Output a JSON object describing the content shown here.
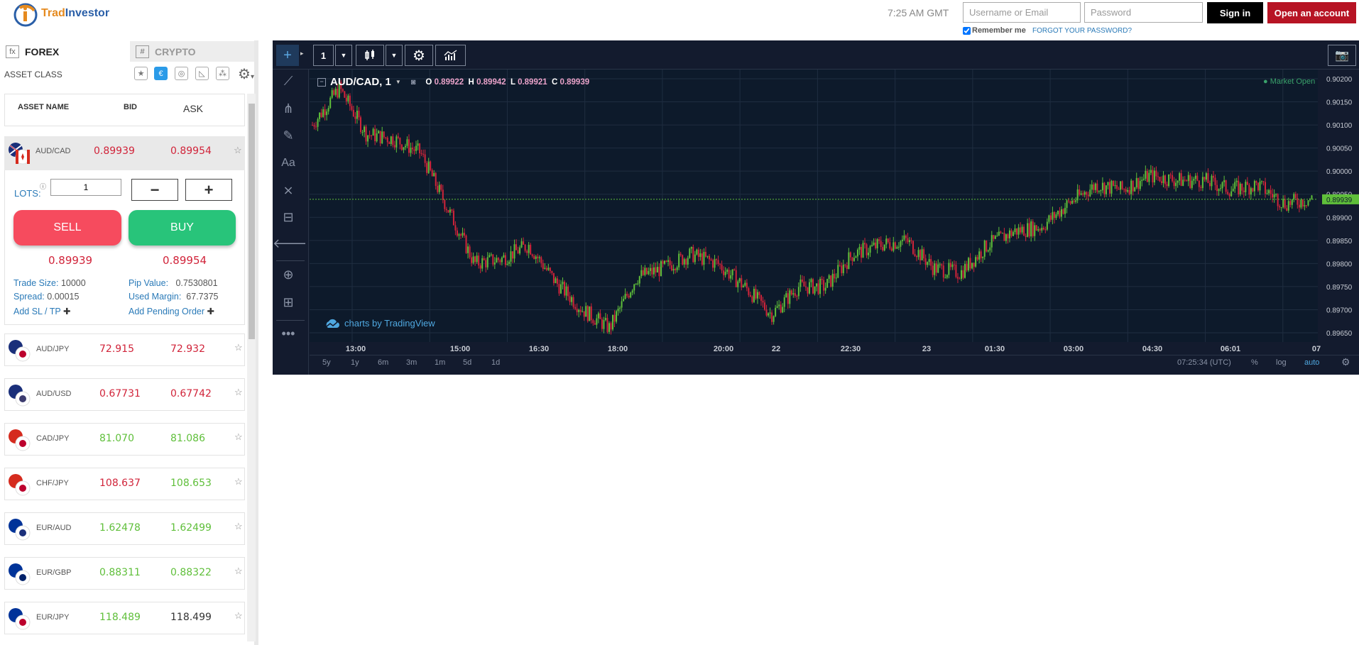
{
  "header": {
    "logo_text_a": "Trad",
    "logo_text_b": "Investor",
    "clock": "7:25 AM GMT",
    "username_placeholder": "Username or Email",
    "password_placeholder": "Password",
    "signin_label": "Sign in",
    "open_account_label": "Open an account",
    "remember_label": "Remember me",
    "forgot_label": "FORGOT YOUR PASSWORD?"
  },
  "tabs": [
    {
      "icon": "fx",
      "label": "FOREX"
    },
    {
      "icon": "#",
      "label": "CRYPTO"
    }
  ],
  "asset_class_label": "ASSET CLASS",
  "filter_icons": [
    "star-icon",
    "euro-icon",
    "coin-icon",
    "chart-icon",
    "cluster-icon"
  ],
  "columns": {
    "name": "ASSET NAME",
    "bid": "BID",
    "ask": "ASK"
  },
  "selected": {
    "name": "AUD/CAD",
    "bid": "0.89939",
    "ask": "0.89954",
    "lots_label": "LOTS:",
    "lots_value": "1",
    "minus": "−",
    "plus": "+",
    "sell_label": "SELL",
    "buy_label": "BUY",
    "sell_price": "0.89939",
    "buy_price": "0.89954",
    "trade_size_label": "Trade Size:",
    "trade_size": "10000",
    "pip_value_label": "Pip Value:",
    "pip_value": "0.7530801",
    "spread_label": "Spread:",
    "spread": "0.00015",
    "used_margin_label": "Used Margin:",
    "used_margin": "67.7375",
    "add_sltp": "Add SL / TP",
    "add_pending": "Add Pending Order"
  },
  "assets": [
    {
      "name": "AUD/JPY",
      "bid": "72.915",
      "ask": "72.932",
      "bid_color": "#d1243a",
      "ask_color": "#d1243a"
    },
    {
      "name": "AUD/USD",
      "bid": "0.67731",
      "ask": "0.67742",
      "bid_color": "#d1243a",
      "ask_color": "#d1243a"
    },
    {
      "name": "CAD/JPY",
      "bid": "81.070",
      "ask": "81.086",
      "bid_color": "#5fbf3a",
      "ask_color": "#5fbf3a"
    },
    {
      "name": "CHF/JPY",
      "bid": "108.637",
      "ask": "108.653",
      "bid_color": "#d1243a",
      "ask_color": "#5fbf3a"
    },
    {
      "name": "EUR/AUD",
      "bid": "1.62478",
      "ask": "1.62499",
      "bid_color": "#5fbf3a",
      "ask_color": "#5fbf3a"
    },
    {
      "name": "EUR/GBP",
      "bid": "0.88311",
      "ask": "0.88322",
      "bid_color": "#5fbf3a",
      "ask_color": "#5fbf3a"
    },
    {
      "name": "EUR/JPY",
      "bid": "118.489",
      "ask": "118.499",
      "bid_color": "#5fbf3a",
      "ask_color": "#333333"
    }
  ],
  "chart": {
    "interval": "1",
    "symbol": "AUD/CAD, 1",
    "o_label": "O",
    "o": "0.89922",
    "h_label": "H",
    "h": "0.89942",
    "l_label": "L",
    "l": "0.89921",
    "c_label": "C",
    "c": "0.89939",
    "market_status": "● Market Open",
    "credit": "charts by TradingView",
    "last_price": "0.89939",
    "price_ticks": [
      "0.90200",
      "0.90150",
      "0.90100",
      "0.90050",
      "0.90000",
      "0.89950",
      "0.89900",
      "0.89850",
      "0.89800",
      "0.89750",
      "0.89700",
      "0.89650"
    ],
    "time_ticks": [
      "13:00",
      "15:00",
      "16:30",
      "18:00",
      "20:00",
      "22",
      "22:30",
      "23",
      "01:30",
      "03:00",
      "04:30",
      "06:01",
      "07"
    ],
    "ranges": [
      "5y",
      "1y",
      "6m",
      "3m",
      "1m",
      "5d",
      "1d"
    ],
    "utc_time": "07:25:34 (UTC)",
    "pct_label": "%",
    "log_label": "log",
    "auto_label": "auto",
    "up_color": "#5fbf3a",
    "down_color": "#d1243a"
  },
  "chart_data": {
    "type": "line",
    "title": "",
    "series": [
      {
        "name": "AUD/CAD, 1",
        "x": [
          "12:40",
          "13:00",
          "13:30",
          "14:00",
          "14:30",
          "15:00",
          "15:30",
          "16:00",
          "16:30",
          "17:00",
          "17:30",
          "18:00",
          "18:30",
          "19:00",
          "19:30",
          "20:00",
          "20:30",
          "21:00",
          "21:30",
          "22:00",
          "22:30",
          "23:00",
          "23:30",
          "00:00",
          "00:30",
          "01:00",
          "01:30",
          "02:00",
          "02:30",
          "03:00",
          "03:30",
          "04:00",
          "04:30",
          "05:00",
          "05:30",
          "06:00",
          "06:30",
          "07:00"
        ],
        "values": [
          0.901,
          0.9018,
          0.9008,
          0.9007,
          0.9004,
          0.8992,
          0.898,
          0.8981,
          0.8984,
          0.8976,
          0.897,
          0.8966,
          0.8977,
          0.8979,
          0.8982,
          0.898,
          0.8975,
          0.8969,
          0.8975,
          0.8975,
          0.8982,
          0.8984,
          0.8985,
          0.8979,
          0.8978,
          0.8984,
          0.8987,
          0.8988,
          0.8993,
          0.8997,
          0.8996,
          0.8999,
          0.8998,
          0.8998,
          0.8996,
          0.8997,
          0.8993,
          0.8994
        ]
      }
    ],
    "ylim": [
      0.8963,
      0.9022
    ],
    "xlabel": "",
    "ylabel": "",
    "grid": true
  }
}
